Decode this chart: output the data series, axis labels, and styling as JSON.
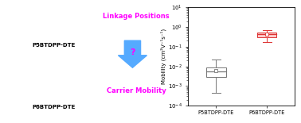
{
  "ylabel": "Mobility (cm²V⁻¹s⁻¹)",
  "categories": [
    "P5BTDPP-DTE",
    "P6BTDPP-DTE"
  ],
  "p5_box": {
    "q1": 0.003,
    "median": 0.0055,
    "q3": 0.009,
    "whisker_low": 0.00045,
    "whisker_high": 0.022,
    "mean": 0.006,
    "color": "#777777",
    "facecolor": "#ffffff"
  },
  "p6_box": {
    "q1": 0.3,
    "median": 0.42,
    "q3": 0.55,
    "whisker_low": 0.18,
    "whisker_high": 0.72,
    "mean": 0.42,
    "color": "#dd3333",
    "facecolor": "#ffcccc"
  },
  "ylim_low": 0.0001,
  "ylim_high": 10.0,
  "text_color_magenta": "#ff00ff",
  "arrow_color": "#55aaff",
  "left_panel_text1": "Linkage Positions",
  "left_panel_text2": "?",
  "left_panel_text3": "Carrier Mobility",
  "label1": "P5BTDPP-DTE",
  "label2": "P6BTDPP-DTE"
}
